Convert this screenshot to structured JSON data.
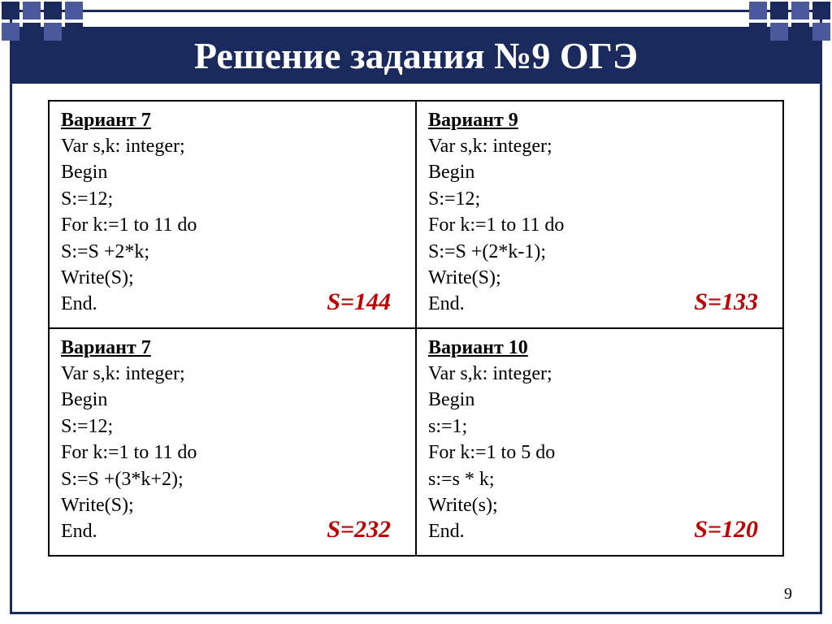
{
  "header": {
    "title": "Решение задания №9 ОГЭ"
  },
  "cells": {
    "c1": {
      "variant": "Вариант 7",
      "l1": "Var s,k: integer;",
      "l2": "Begin",
      "l3": "S:=12;",
      "l4": "For k:=1 to 11 do",
      "l5": "S:=S +2*k;",
      "l6": "Write(S);",
      "l7": "End.",
      "answer": "S=144"
    },
    "c2": {
      "variant": "Вариант 9",
      "l1": "Var s,k: integer;",
      "l2": "Begin",
      "l3": "S:=12;",
      "l4": "For k:=1 to 11 do",
      "l5": "S:=S +(2*k-1);",
      "l6": "Write(S);",
      "l7": "End.",
      "answer": "S=133"
    },
    "c3": {
      "variant": "Вариант 7",
      "l1": "Var s,k: integer;",
      "l2": "Begin",
      "l3": "S:=12;",
      "l4": "For k:=1 to 11 do",
      "l5": "S:=S +(3*k+2);",
      "l6": "Write(S);",
      "l7": "End.",
      "answer": "S=232"
    },
    "c4": {
      "variant": "Вариант 10",
      "l1": "Var s,k: integer;",
      "l2": "Begin",
      "l3": "s:=1;",
      "l4": "For k:=1 to 5 do",
      "l5": "s:=s * k;",
      "l6": "Write(s);",
      "l7": "End.",
      "answer": "S=120"
    }
  },
  "page": {
    "number": "9"
  },
  "colors": {
    "accent_dark": "#1a2a5c",
    "accent_light": "#4a5a9c",
    "answer_color": "#c00000",
    "border_color": "#000000",
    "background": "#ffffff"
  }
}
